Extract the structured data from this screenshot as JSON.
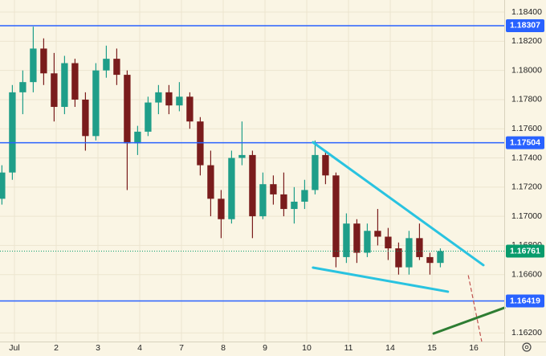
{
  "chart_data": {
    "type": "candlestick",
    "xlim": [
      -0.346,
      11.73
    ],
    "ylim": [
      1.18483,
      1.16141
    ],
    "xticks": [
      {
        "value": 0,
        "label": "Jul"
      },
      {
        "value": 1,
        "label": "2"
      },
      {
        "value": 2,
        "label": "3"
      },
      {
        "value": 3,
        "label": "4"
      },
      {
        "value": 4,
        "label": "7"
      },
      {
        "value": 5,
        "label": "8"
      },
      {
        "value": 6,
        "label": "9"
      },
      {
        "value": 7,
        "label": "10"
      },
      {
        "value": 8,
        "label": "11"
      },
      {
        "value": 9,
        "label": "14"
      },
      {
        "value": 10,
        "label": "15"
      },
      {
        "value": 11,
        "label": "16"
      }
    ],
    "yticks": [
      {
        "value": 1.184,
        "label": "1.18400"
      },
      {
        "value": 1.182,
        "label": "1.18200"
      },
      {
        "value": 1.18,
        "label": "1.18000"
      },
      {
        "value": 1.178,
        "label": "1.17800"
      },
      {
        "value": 1.176,
        "label": "1.17600"
      },
      {
        "value": 1.174,
        "label": "1.17400"
      },
      {
        "value": 1.172,
        "label": "1.17200"
      },
      {
        "value": 1.17,
        "label": "1.17000"
      },
      {
        "value": 1.168,
        "label": "1.16800"
      },
      {
        "value": 1.166,
        "label": "1.16600"
      },
      {
        "value": 1.162,
        "label": "1.16200"
      }
    ],
    "grid": true,
    "up_color": "#1f9e89",
    "down_color": "#7a1c1c",
    "candles": {
      "x": [
        -0.3,
        -0.05,
        0.2,
        0.45,
        0.7,
        0.95,
        1.2,
        1.45,
        1.7,
        1.95,
        2.2,
        2.45,
        2.7,
        2.95,
        3.2,
        3.45,
        3.7,
        3.95,
        4.2,
        4.45,
        4.7,
        4.95,
        5.2,
        5.45,
        5.7,
        5.95,
        6.2,
        6.45,
        6.7,
        6.95,
        7.2,
        7.45,
        7.7,
        7.95,
        8.2,
        8.45,
        8.7,
        8.95,
        9.2,
        9.45,
        9.7,
        9.95,
        10.2
      ],
      "open": [
        1.1712,
        1.173,
        1.1785,
        1.1792,
        1.1815,
        1.1798,
        1.1775,
        1.1805,
        1.178,
        1.1755,
        1.18,
        1.1808,
        1.1797,
        1.175,
        1.1758,
        1.1778,
        1.1785,
        1.1776,
        1.1782,
        1.1765,
        1.1735,
        1.1712,
        1.1698,
        1.174,
        1.1742,
        1.17,
        1.1722,
        1.1715,
        1.1705,
        1.171,
        1.1718,
        1.1742,
        1.1728,
        1.1672,
        1.1695,
        1.1675,
        1.169,
        1.1686,
        1.1678,
        1.1665,
        1.1685,
        1.1672,
        1.1668
      ],
      "high": [
        1.1735,
        1.179,
        1.18,
        1.183,
        1.1822,
        1.1812,
        1.181,
        1.1808,
        1.1785,
        1.1805,
        1.1817,
        1.1815,
        1.18,
        1.1762,
        1.1782,
        1.179,
        1.179,
        1.1792,
        1.1785,
        1.1768,
        1.1745,
        1.1718,
        1.1745,
        1.1765,
        1.1745,
        1.173,
        1.1728,
        1.173,
        1.172,
        1.1725,
        1.1752,
        1.1745,
        1.173,
        1.1702,
        1.1698,
        1.1695,
        1.1705,
        1.1692,
        1.1682,
        1.169,
        1.1695,
        1.1675,
        1.1678
      ],
      "low": [
        1.1708,
        1.1725,
        1.177,
        1.1785,
        1.179,
        1.1765,
        1.177,
        1.1775,
        1.1745,
        1.1752,
        1.1795,
        1.179,
        1.1718,
        1.1742,
        1.1755,
        1.177,
        1.177,
        1.1772,
        1.176,
        1.1728,
        1.17,
        1.1685,
        1.1695,
        1.1735,
        1.1685,
        1.1698,
        1.1708,
        1.17,
        1.1695,
        1.1705,
        1.1715,
        1.1722,
        1.1665,
        1.1668,
        1.1668,
        1.1672,
        1.168,
        1.167,
        1.166,
        1.166,
        1.167,
        1.166,
        1.1665
      ],
      "close": [
        1.173,
        1.1785,
        1.1792,
        1.1815,
        1.1798,
        1.1775,
        1.1805,
        1.178,
        1.1755,
        1.18,
        1.1808,
        1.1797,
        1.175,
        1.1758,
        1.1778,
        1.1785,
        1.1776,
        1.1782,
        1.1765,
        1.1735,
        1.1712,
        1.1698,
        1.174,
        1.1742,
        1.17,
        1.1722,
        1.1715,
        1.1705,
        1.171,
        1.1718,
        1.1742,
        1.1728,
        1.1672,
        1.1695,
        1.1675,
        1.169,
        1.1686,
        1.1678,
        1.1665,
        1.1685,
        1.1672,
        1.1668,
        1.16761
      ]
    },
    "levels": {
      "color": "#2962ff",
      "values": [
        {
          "value": 1.18307,
          "label": "1.18307"
        },
        {
          "value": 1.17504,
          "label": "1.17504"
        },
        {
          "value": 1.16419,
          "label": "1.16419"
        }
      ]
    },
    "last_price": {
      "value": 1.16761,
      "label": "1.16761",
      "color": "#089b6c"
    },
    "drawings": [
      {
        "color": "#29c3e0",
        "x": [
          7.15,
          11.23
        ],
        "y": [
          1.17507,
          1.16665
        ]
      },
      {
        "color": "#29c3e0",
        "x": [
          7.15,
          10.38
        ],
        "y": [
          1.16648,
          1.16483
        ]
      },
      {
        "color": "#c0504d",
        "dashed": true,
        "x": [
          10.87,
          11.19
        ],
        "y": [
          1.16593,
          1.16141
        ]
      },
      {
        "color": "#2e7d32",
        "x": [
          10.04,
          11.73
        ],
        "y": [
          1.16196,
          1.16372
        ]
      }
    ]
  }
}
